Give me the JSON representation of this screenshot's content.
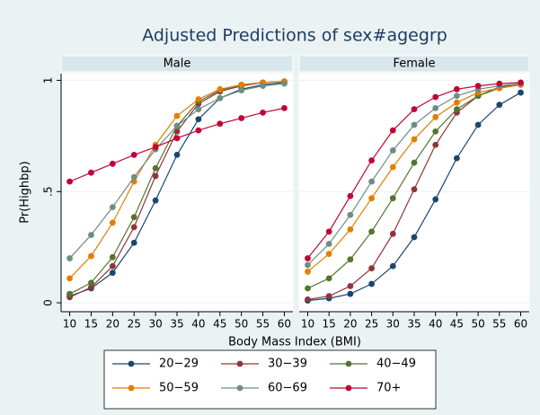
{
  "title": "Adjusted Predictions of sex#agegrp",
  "xlabel": "Body Mass Index (BMI)",
  "ylabel": "Pr(Highbp)",
  "chart_data": [
    {
      "type": "line",
      "title": "Male",
      "x": [
        10,
        15,
        20,
        25,
        30,
        35,
        40,
        45,
        50,
        55,
        60
      ],
      "xlim": [
        8,
        62
      ],
      "xticks": [
        10,
        15,
        20,
        25,
        30,
        35,
        40,
        45,
        50,
        55,
        60
      ],
      "ylim": [
        -0.04,
        1.03
      ],
      "yticks": [
        0,
        {
          "value": 0.5,
          "label": ".5"
        },
        1
      ],
      "grid": true,
      "series": [
        {
          "name": "20−29",
          "color": "#1a476f",
          "values": [
            0.03,
            0.065,
            0.135,
            0.27,
            0.46,
            0.665,
            0.825,
            0.92,
            0.96,
            0.98,
            0.99
          ]
        },
        {
          "name": "30−39",
          "color": "#90353b",
          "values": [
            0.025,
            0.07,
            0.165,
            0.34,
            0.57,
            0.77,
            0.895,
            0.95,
            0.975,
            0.99,
            0.995
          ]
        },
        {
          "name": "40−49",
          "color": "#55752f",
          "values": [
            0.04,
            0.09,
            0.205,
            0.385,
            0.605,
            0.795,
            0.905,
            0.955,
            0.98,
            0.99,
            0.995
          ]
        },
        {
          "name": "50−59",
          "color": "#e37e00",
          "values": [
            0.11,
            0.21,
            0.36,
            0.545,
            0.71,
            0.84,
            0.915,
            0.96,
            0.98,
            0.99,
            0.995
          ]
        },
        {
          "name": "60−69",
          "color": "#6e8e84",
          "values": [
            0.2,
            0.305,
            0.43,
            0.565,
            0.69,
            0.795,
            0.87,
            0.92,
            0.955,
            0.975,
            0.985
          ]
        },
        {
          "name": "70+",
          "color": "#c10534",
          "values": [
            0.545,
            0.585,
            0.625,
            0.665,
            0.7,
            0.74,
            0.775,
            0.805,
            0.83,
            0.855,
            0.875
          ]
        }
      ]
    },
    {
      "type": "line",
      "title": "Female",
      "x": [
        10,
        15,
        20,
        25,
        30,
        35,
        40,
        45,
        50,
        55,
        60
      ],
      "xlim": [
        8,
        62
      ],
      "xticks": [
        10,
        15,
        20,
        25,
        30,
        35,
        40,
        45,
        50,
        55,
        60
      ],
      "ylim": [
        -0.04,
        1.03
      ],
      "yticks": [
        0,
        0.5,
        1
      ],
      "grid": true,
      "series": [
        {
          "color": "#1a476f",
          "values": [
            0.01,
            0.02,
            0.04,
            0.085,
            0.165,
            0.295,
            0.465,
            0.65,
            0.8,
            0.89,
            0.945
          ]
        },
        {
          "color": "#90353b",
          "values": [
            0.015,
            0.03,
            0.075,
            0.155,
            0.31,
            0.51,
            0.71,
            0.855,
            0.93,
            0.97,
            0.985
          ]
        },
        {
          "color": "#55752f",
          "values": [
            0.065,
            0.11,
            0.195,
            0.32,
            0.47,
            0.63,
            0.77,
            0.87,
            0.93,
            0.965,
            0.98
          ]
        },
        {
          "color": "#e37e00",
          "values": [
            0.14,
            0.22,
            0.33,
            0.47,
            0.61,
            0.735,
            0.835,
            0.9,
            0.945,
            0.965,
            0.98
          ]
        },
        {
          "color": "#6e8e84",
          "values": [
            0.17,
            0.265,
            0.395,
            0.545,
            0.685,
            0.8,
            0.875,
            0.93,
            0.96,
            0.975,
            0.985
          ]
        },
        {
          "color": "#c10534",
          "values": [
            0.2,
            0.32,
            0.48,
            0.64,
            0.775,
            0.87,
            0.925,
            0.96,
            0.975,
            0.985,
            0.99
          ]
        }
      ]
    }
  ]
}
